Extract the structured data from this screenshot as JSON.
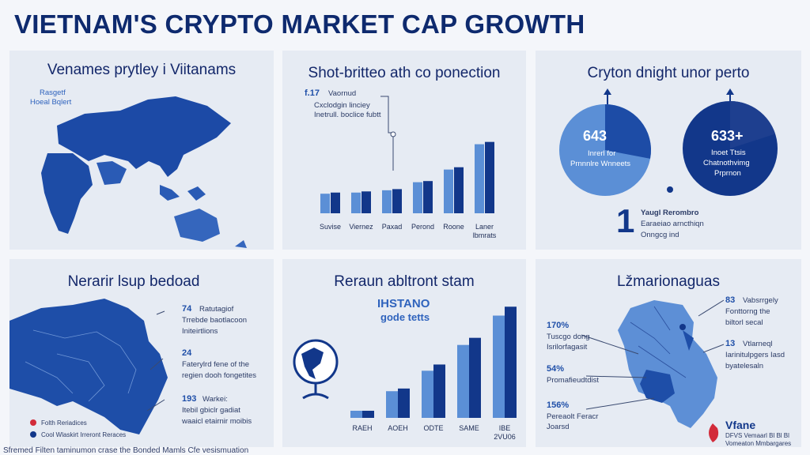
{
  "header": {
    "title": "VIETNAM'S CRYPTO MARKET CAP GROWTH"
  },
  "panel1": {
    "title": "Venames prytley i Viitanams",
    "legend": [
      "Rasgetf",
      "Hoeal Bqlert"
    ]
  },
  "panel2": {
    "title": "Shot-britteo ath co ponection",
    "annotation": {
      "num": "f.17",
      "label": "Vaornud",
      "line1": "Cxclodgin linciey",
      "line2": "Inetrull. boclice fubtt"
    },
    "chart_data": {
      "type": "bar",
      "categories": [
        "Suvise",
        "Viernez",
        "Paxad",
        "Perond",
        "Roone",
        "Laner lbmrats"
      ],
      "series": [
        {
          "values": [
            17,
            18,
            20,
            27,
            38,
            60
          ]
        },
        {
          "values": [
            18,
            19,
            21,
            28,
            40,
            62
          ]
        }
      ],
      "ylim": [
        0,
        70
      ]
    }
  },
  "panel3": {
    "title": "Cryton dnight unor perto",
    "pie_left": {
      "value": "643",
      "line1": "Inrerl for",
      "line2": "Prnnnlre Wnneets"
    },
    "pie_right": {
      "value": "633+",
      "line1": "Inoet Ttsis",
      "line2": "Chatnothvimg",
      "line3": "Prprnon"
    },
    "big_num": "1",
    "note": {
      "line1": "Yaugl Rerombro",
      "line2": "Earaeiao arncthiqn",
      "line3": "Onngcg ind"
    },
    "chart_data": {
      "type": "pie",
      "pies": [
        {
          "name": "643",
          "slices": [
            0.72,
            0.28
          ]
        },
        {
          "name": "633+",
          "slices": [
            0.8,
            0.2
          ]
        }
      ]
    }
  },
  "panel4": {
    "title": "Nerarir lsup bedoad",
    "notes": [
      {
        "num": "74",
        "label": "Ratutagiof",
        "line1": "Trrebde baotlacoon",
        "line2": "Initeirtlions"
      },
      {
        "num": "24",
        "label": "",
        "line1": "Faterylrd fene of the",
        "line2": "regien dooh fongetites"
      },
      {
        "num": "193",
        "label": "Warkei:",
        "line1": "Itebil gbiclr gadiat",
        "line2": "waaicl etairnir moibis"
      }
    ],
    "legend": [
      "Folth Reriadices",
      "Cool Wlaskirt Irreront Reraces"
    ]
  },
  "panel5": {
    "title": "Reraun abltront stam",
    "subtitle1": "IHSTANO",
    "subtitle2": "gode tetts",
    "chart_data": {
      "type": "bar",
      "categories": [
        "RAEH",
        "AOEH",
        "ODTE",
        "SAME",
        "IBE 2VU06"
      ],
      "series": [
        {
          "values": [
            8,
            30,
            53,
            82,
            115
          ]
        },
        {
          "values": [
            8,
            33,
            60,
            90,
            125
          ]
        }
      ],
      "ylim": [
        0,
        135
      ]
    }
  },
  "panel6": {
    "title": "Lžmarionaguas",
    "notes": [
      {
        "num": "83",
        "label": "Vabsrrgely",
        "line1": "Fonttorng the",
        "line2": "biltorl secal"
      },
      {
        "num": "13",
        "label": "Vtlarneql",
        "line1": "Iarinitulpgers Iasd",
        "line2": "byatelesaln"
      }
    ],
    "left_notes": [
      {
        "num": "170%",
        "line1": "Tuscgo dong",
        "line2": "Isrilorfagasit"
      },
      {
        "num": "54%",
        "line1": "Promafieudtdist",
        "line2": ""
      },
      {
        "num": "156%",
        "line1": "Pereaolt Feracr",
        "line2": "Joarsd"
      }
    ],
    "brand": "Vfane",
    "brand_sub1": "DFVS Vemaarl Bl Bl Bl",
    "brand_sub2": "Vomeaton Mmbargares"
  },
  "footer": {
    "text": "Sfremed Filten taminumon crase the Bonded Mamls Cfe vesismuation"
  },
  "colors": {
    "navy": "#12378a",
    "mid": "#2f63bd",
    "light": "#5b8fd6",
    "bg": "#f4f6fa",
    "panel": "#e6ebf3"
  }
}
